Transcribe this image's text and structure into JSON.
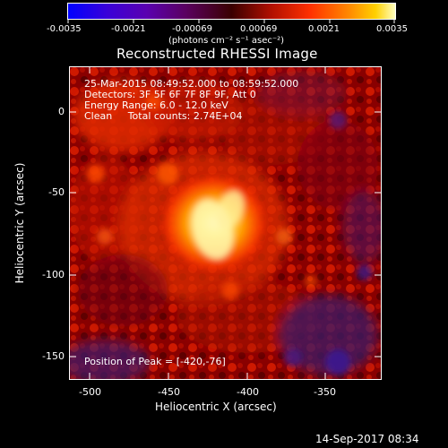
{
  "colorbar": {
    "tick_labels": [
      "-0.0035",
      "-0.0021",
      "-0.00069",
      "0.00069",
      "0.0021",
      "0.0035"
    ],
    "units_label": "(photons cm⁻² s⁻¹ asec⁻²)"
  },
  "image": {
    "title": "Reconstructed RHESSI Image",
    "info_lines": [
      "25-Mar-2015 08:49:52.000 to 08:59:52.000",
      "Detectors: 3F 5F 6F 7F 8F 9F, Att 0",
      "Energy Range: 6.0 - 12.0 keV",
      "Clean     Total counts: 2.74E+04"
    ],
    "peak_label": "Position of Peak = [-420,-76]"
  },
  "axes": {
    "x_label": "Heliocentric X (arcsec)",
    "y_label": "Heliocentric Y (arcsec)",
    "x_ticks": [
      "-500",
      "-450",
      "-400",
      "-350"
    ],
    "y_ticks": [
      "0",
      "-50",
      "-100",
      "-150"
    ]
  },
  "footer": {
    "timestamp": "14-Sep-2017 08:34"
  },
  "colors": {
    "background": "#000000",
    "text": "#ffffff"
  }
}
